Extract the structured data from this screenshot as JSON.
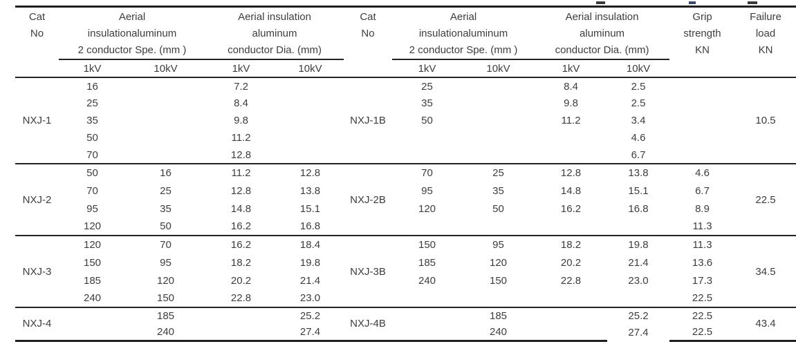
{
  "table": {
    "header": {
      "cat_no": [
        "Cat",
        "No"
      ],
      "spe_group": [
        "Aerial",
        "insulationaluminum",
        "2 conductor Spe. (mm )"
      ],
      "dia_group": [
        "Aerial insulation",
        "aluminum",
        "conductor Dia. (mm)"
      ],
      "grip": [
        "Grip",
        "strength",
        "KN"
      ],
      "failure": [
        "Failure",
        "load",
        "KN"
      ],
      "sub": {
        "kv1": "1kV",
        "kv10": "10kV"
      }
    },
    "blocks": [
      {
        "left": {
          "cat": "NXJ-1",
          "rows": [
            [
              "16",
              "",
              "7.2",
              ""
            ],
            [
              "25",
              "",
              "8.4",
              ""
            ],
            [
              "35",
              "",
              "9.8",
              ""
            ],
            [
              "50",
              "",
              "11.2",
              ""
            ],
            [
              "70",
              "",
              "12.8",
              ""
            ]
          ]
        },
        "right": {
          "cat": "NXJ-1B",
          "rows": [
            [
              "25",
              "",
              "8.4",
              "2.5",
              ""
            ],
            [
              "35",
              "",
              "9.8",
              "2.5",
              ""
            ],
            [
              "50",
              "",
              "11.2",
              "3.4",
              ""
            ],
            [
              "",
              "",
              "",
              "4.6",
              ""
            ],
            [
              "",
              "",
              "",
              "6.7",
              ""
            ]
          ],
          "failure": "10.5"
        }
      },
      {
        "left": {
          "cat": "NXJ-2",
          "rows": [
            [
              "50",
              "16",
              "11.2",
              "12.8"
            ],
            [
              "70",
              "25",
              "12.8",
              "13.8"
            ],
            [
              "95",
              "35",
              "14.8",
              "15.1"
            ],
            [
              "120",
              "50",
              "16.2",
              "16.8"
            ]
          ]
        },
        "right": {
          "cat": "NXJ-2B",
          "rows": [
            [
              "70",
              "25",
              "12.8",
              "13.8",
              "4.6"
            ],
            [
              "95",
              "35",
              "14.8",
              "15.1",
              "6.7"
            ],
            [
              "120",
              "50",
              "16.2",
              "16.8",
              "8.9"
            ],
            [
              "",
              "",
              "",
              "",
              "11.3"
            ]
          ],
          "failure": "22.5"
        }
      },
      {
        "left": {
          "cat": "NXJ-3",
          "rows": [
            [
              "120",
              "70",
              "16.2",
              "18.4"
            ],
            [
              "150",
              "95",
              "18.2",
              "19.8"
            ],
            [
              "185",
              "120",
              "20.2",
              "21.4"
            ],
            [
              "240",
              "150",
              "22.8",
              "23.0"
            ]
          ]
        },
        "right": {
          "cat": "NXJ-3B",
          "rows": [
            [
              "150",
              "95",
              "18.2",
              "19.8",
              "11.3"
            ],
            [
              "185",
              "120",
              "20.2",
              "21.4",
              "13.6"
            ],
            [
              "240",
              "150",
              "22.8",
              "23.0",
              "17.3"
            ],
            [
              "",
              "",
              "",
              "",
              "22.5"
            ]
          ],
          "failure": "34.5"
        }
      },
      {
        "left": {
          "cat": "NXJ-4",
          "rows": [
            [
              "",
              "185",
              "",
              "25.2"
            ],
            [
              "",
              "240",
              "",
              "27.4"
            ]
          ]
        },
        "right": {
          "cat": "NXJ-4B",
          "rows": [
            [
              "",
              "185",
              "",
              "25.2",
              "22.5"
            ],
            [
              "",
              "240",
              "",
              "27.4",
              "22.5"
            ]
          ],
          "failure": "43.4"
        }
      }
    ]
  }
}
